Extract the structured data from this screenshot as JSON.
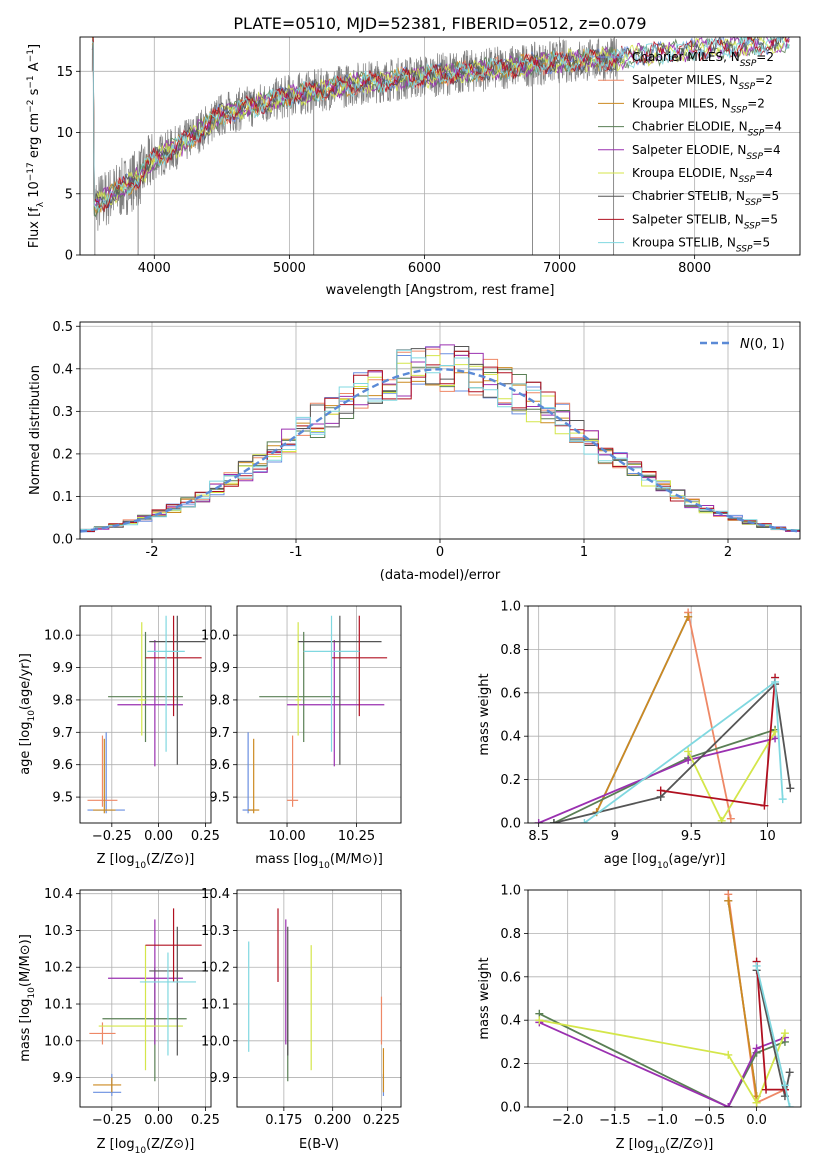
{
  "figure": {
    "title": "PLATE=0510, MJD=52381, FIBERID=0512, z=0.079"
  },
  "models": [
    {
      "name": "Chabrier MILES",
      "nssp": "2",
      "color": "#6a8fe0"
    },
    {
      "name": "Salpeter MILES",
      "nssp": "2",
      "color": "#ee8866"
    },
    {
      "name": "Kroupa MILES",
      "nssp": "2",
      "color": "#cc8a20"
    },
    {
      "name": "Chabrier ELODIE",
      "nssp": "4",
      "color": "#5a7f55"
    },
    {
      "name": "Salpeter ELODIE",
      "nssp": "4",
      "color": "#9a30b0"
    },
    {
      "name": "Kroupa ELODIE",
      "nssp": "4",
      "color": "#d4e64a"
    },
    {
      "name": "Chabrier STELIB",
      "nssp": "5",
      "color": "#555555"
    },
    {
      "name": "Salpeter STELIB",
      "nssp": "5",
      "color": "#b01020"
    },
    {
      "name": "Kroupa STELIB",
      "nssp": "5",
      "color": "#80d8e0"
    }
  ],
  "chart_data": [
    {
      "id": "spectrum",
      "type": "line",
      "title": "PLATE=0510, MJD=52381, FIBERID=0512, z=0.079",
      "xlabel": "wavelength [Angstrom, rest frame]",
      "ylabel": "Flux [f_λ 10^-17 erg cm^-2 s^-1 A^-1]",
      "xlim": [
        3450,
        8780
      ],
      "ylim": [
        0,
        17.8
      ],
      "xticks": [
        4000,
        5000,
        6000,
        7000,
        8000
      ],
      "yticks": [
        0,
        5,
        10,
        15
      ],
      "legend": "upper right",
      "continuum_x": [
        3550,
        3700,
        3900,
        4000,
        4200,
        4500,
        5000,
        5500,
        6000,
        6500,
        7000,
        7400,
        7500,
        8000,
        8500,
        8780
      ],
      "continuum_y": [
        4.0,
        5.0,
        6.5,
        7.9,
        9.0,
        11.5,
        13.0,
        14.0,
        14.6,
        15.2,
        15.8,
        16.0,
        16.2,
        16.8,
        17.2,
        17.5
      ],
      "data_range": [
        3540,
        7430
      ],
      "model_range": [
        3540,
        8700
      ],
      "dips": [
        {
          "x": 3560,
          "y": 0
        },
        {
          "x": 3880,
          "y": 0
        },
        {
          "x": 5180,
          "y": 0
        },
        {
          "x": 6800,
          "y": 0
        },
        {
          "x": 7400,
          "y": 0
        }
      ]
    },
    {
      "id": "residuals",
      "type": "line",
      "xlabel": "(data-model)/error",
      "ylabel": "Normed distribution",
      "xlim": [
        -2.5,
        2.5
      ],
      "ylim": [
        0,
        0.51
      ],
      "xticks": [
        -2,
        -1,
        0,
        1,
        2
      ],
      "yticks": [
        0.0,
        0.1,
        0.2,
        0.3,
        0.4,
        0.5
      ],
      "gaussian_label": "N(0,1)",
      "gaussian_color": "#5b8ad6",
      "bin_width": 0.1,
      "legend": "upper right"
    },
    {
      "id": "age_vs_Z",
      "type": "scatter",
      "xlabel": "Z [log10(Z/Z⊙)]",
      "ylabel": "age [log10(age/yr)]",
      "xlim": [
        -0.42,
        0.28
      ],
      "ylim": [
        9.42,
        10.09
      ],
      "xticks": [
        -0.25,
        0.0,
        0.25
      ],
      "xticklabels": [
        "−0.25",
        "0.00",
        "0.25"
      ],
      "yticks": [
        9.5,
        9.6,
        9.7,
        9.8,
        9.9,
        10.0
      ],
      "points": [
        {
          "model": 0,
          "x": -0.28,
          "y": 9.46,
          "xerr": [
            0.1,
            0.1
          ],
          "yerr": [
            0.01,
            0.24
          ]
        },
        {
          "model": 1,
          "x": -0.3,
          "y": 9.49,
          "xerr": [
            0.08,
            0.08
          ],
          "yerr": [
            0.02,
            0.2
          ]
        },
        {
          "model": 2,
          "x": -0.29,
          "y": 9.46,
          "xerr": [
            0.06,
            0.06
          ],
          "yerr": [
            0.01,
            0.22
          ]
        },
        {
          "model": 3,
          "x": -0.07,
          "y": 9.81,
          "xerr": [
            0.2,
            0.2
          ],
          "yerr": [
            0.14,
            0.2
          ]
        },
        {
          "model": 4,
          "x": -0.02,
          "y": 9.785,
          "xerr": [
            0.2,
            0.15
          ],
          "yerr": [
            0.19,
            0.2
          ]
        },
        {
          "model": 5,
          "x": -0.09,
          "y": 9.8,
          "xerr": [
            0.02,
            0.02
          ],
          "yerr": [
            0.11,
            0.24
          ]
        },
        {
          "model": 6,
          "x": 0.1,
          "y": 9.98,
          "xerr": [
            0.15,
            0.15
          ],
          "yerr": [
            0.38,
            0.08
          ]
        },
        {
          "model": 7,
          "x": 0.08,
          "y": 9.93,
          "xerr": [
            0.15,
            0.15
          ],
          "yerr": [
            0.18,
            0.13
          ]
        },
        {
          "model": 8,
          "x": 0.04,
          "y": 9.95,
          "xerr": [
            0.1,
            0.1
          ],
          "yerr": [
            0.31,
            0.11
          ]
        }
      ]
    },
    {
      "id": "age_vs_mass",
      "type": "scatter",
      "xlabel": "mass [log10(M/M⊙)]",
      "ylabel": "",
      "xlim": [
        9.82,
        10.41
      ],
      "ylim": [
        9.42,
        10.09
      ],
      "xticks": [
        10.0,
        10.25
      ],
      "xticklabels": [
        "10.00",
        "10.25"
      ],
      "yticks": [
        9.5,
        9.6,
        9.7,
        9.8,
        9.9,
        10.0
      ],
      "points": [
        {
          "model": 0,
          "x": 9.86,
          "y": 9.46,
          "xerr": [
            0.02,
            0.02
          ],
          "yerr": [
            0.01,
            0.24
          ]
        },
        {
          "model": 1,
          "x": 10.02,
          "y": 9.49,
          "xerr": [
            0.02,
            0.02
          ],
          "yerr": [
            0.02,
            0.2
          ]
        },
        {
          "model": 2,
          "x": 9.88,
          "y": 9.46,
          "xerr": [
            0.02,
            0.02
          ],
          "yerr": [
            0.01,
            0.22
          ]
        },
        {
          "model": 3,
          "x": 10.06,
          "y": 9.81,
          "xerr": [
            0.16,
            0.13
          ],
          "yerr": [
            0.14,
            0.2
          ]
        },
        {
          "model": 4,
          "x": 10.17,
          "y": 9.785,
          "xerr": [
            0.17,
            0.18
          ],
          "yerr": [
            0.19,
            0.2
          ]
        },
        {
          "model": 5,
          "x": 10.04,
          "y": 9.8,
          "xerr": [
            0.01,
            0.01
          ],
          "yerr": [
            0.11,
            0.24
          ]
        },
        {
          "model": 6,
          "x": 10.19,
          "y": 9.98,
          "xerr": [
            0.15,
            0.15
          ],
          "yerr": [
            0.38,
            0.08
          ]
        },
        {
          "model": 7,
          "x": 10.26,
          "y": 9.93,
          "xerr": [
            0.1,
            0.1
          ],
          "yerr": [
            0.18,
            0.13
          ]
        },
        {
          "model": 8,
          "x": 10.16,
          "y": 9.95,
          "xerr": [
            0.1,
            0.1
          ],
          "yerr": [
            0.31,
            0.11
          ]
        }
      ]
    },
    {
      "id": "weight_vs_age",
      "type": "line",
      "xlabel": "age [log10(age/yr)]",
      "ylabel": "mass weight",
      "xlim": [
        8.43,
        10.22
      ],
      "ylim": [
        0,
        1.0
      ],
      "xticks": [
        8.5,
        9.0,
        9.5,
        10.0
      ],
      "yticks": [
        0.0,
        0.2,
        0.4,
        0.6,
        0.8,
        1.0
      ],
      "series": [
        {
          "model": 0,
          "x": [
            8.88,
            9.48
          ],
          "y": [
            0.05,
            0.95
          ]
        },
        {
          "model": 1,
          "x": [
            9.48,
            9.76
          ],
          "y": [
            0.97,
            0.02
          ]
        },
        {
          "model": 2,
          "x": [
            8.88,
            9.48
          ],
          "y": [
            0.05,
            0.95
          ]
        },
        {
          "model": 3,
          "x": [
            8.6,
            9.48,
            10.05
          ],
          "y": [
            0.0,
            0.3,
            0.43
          ]
        },
        {
          "model": 4,
          "x": [
            8.5,
            9.48,
            10.05
          ],
          "y": [
            0.0,
            0.29,
            0.39
          ]
        },
        {
          "model": 5,
          "x": [
            9.48,
            9.7,
            10.05
          ],
          "y": [
            0.33,
            0.01,
            0.42
          ]
        },
        {
          "model": 6,
          "x": [
            8.6,
            9.3,
            10.05,
            10.15
          ],
          "y": [
            0.0,
            0.12,
            0.64,
            0.16
          ]
        },
        {
          "model": 7,
          "x": [
            9.3,
            9.98,
            10.05
          ],
          "y": [
            0.15,
            0.08,
            0.67
          ]
        },
        {
          "model": 8,
          "x": [
            8.8,
            10.05,
            10.1
          ],
          "y": [
            0.0,
            0.65,
            0.11
          ]
        }
      ]
    },
    {
      "id": "mass_vs_Z",
      "type": "scatter",
      "xlabel": "Z [log10(Z/Z⊙)]",
      "ylabel": "mass [log10(M/M⊙)]",
      "xlim": [
        -0.42,
        0.28
      ],
      "ylim": [
        9.82,
        10.41
      ],
      "xticks": [
        -0.25,
        0.0,
        0.25
      ],
      "xticklabels": [
        "−0.25",
        "0.00",
        "0.25"
      ],
      "yticks": [
        9.9,
        10.0,
        10.1,
        10.2,
        10.3,
        10.4
      ],
      "points": [
        {
          "model": 0,
          "x": -0.25,
          "y": 9.86,
          "xerr": [
            0.1,
            0.05
          ],
          "yerr": [
            0.01,
            0.05
          ]
        },
        {
          "model": 1,
          "x": -0.3,
          "y": 10.02,
          "xerr": [
            0.07,
            0.07
          ],
          "yerr": [
            0.03,
            0.03
          ]
        },
        {
          "model": 2,
          "x": -0.25,
          "y": 9.88,
          "xerr": [
            0.1,
            0.05
          ],
          "yerr": [
            0.02,
            0.02
          ]
        },
        {
          "model": 3,
          "x": -0.02,
          "y": 10.06,
          "xerr": [
            0.28,
            0.17
          ],
          "yerr": [
            0.17,
            0.14
          ]
        },
        {
          "model": 4,
          "x": -0.02,
          "y": 10.17,
          "xerr": [
            0.25,
            0.15
          ],
          "yerr": [
            0.18,
            0.16
          ]
        },
        {
          "model": 5,
          "x": -0.07,
          "y": 10.04,
          "xerr": [
            0.25,
            0.2
          ],
          "yerr": [
            0.12,
            0.22
          ]
        },
        {
          "model": 6,
          "x": 0.1,
          "y": 10.19,
          "xerr": [
            0.15,
            0.15
          ],
          "yerr": [
            0.23,
            0.12
          ]
        },
        {
          "model": 7,
          "x": 0.08,
          "y": 10.26,
          "xerr": [
            0.15,
            0.15
          ],
          "yerr": [
            0.1,
            0.1
          ]
        },
        {
          "model": 8,
          "x": 0.05,
          "y": 10.16,
          "xerr": [
            0.15,
            0.15
          ],
          "yerr": [
            0.2,
            0.08
          ]
        }
      ]
    },
    {
      "id": "mass_vs_EBV",
      "type": "scatter",
      "xlabel": "E(B-V)",
      "ylabel": "",
      "xlim": [
        0.151,
        0.235
      ],
      "ylim": [
        9.82,
        10.41
      ],
      "xticks": [
        0.175,
        0.2,
        0.225
      ],
      "xticklabels": [
        "0.175",
        "0.200",
        "0.225"
      ],
      "yticks": [
        9.9,
        10.0,
        10.1,
        10.2,
        10.3,
        10.4
      ],
      "points": [
        {
          "model": 0,
          "x": 0.226,
          "y": 9.86,
          "xerr": [
            0,
            0
          ],
          "yerr": [
            0.01,
            0.05
          ]
        },
        {
          "model": 1,
          "x": 0.225,
          "y": 10.02,
          "xerr": [
            0,
            0
          ],
          "yerr": [
            0.03,
            0.1
          ]
        },
        {
          "model": 2,
          "x": 0.226,
          "y": 9.88,
          "xerr": [
            0,
            0
          ],
          "yerr": [
            0.02,
            0.1
          ]
        },
        {
          "model": 3,
          "x": 0.177,
          "y": 10.06,
          "xerr": [
            0,
            0
          ],
          "yerr": [
            0.17,
            0.14
          ]
        },
        {
          "model": 4,
          "x": 0.176,
          "y": 10.17,
          "xerr": [
            0,
            0
          ],
          "yerr": [
            0.18,
            0.16
          ]
        },
        {
          "model": 5,
          "x": 0.189,
          "y": 10.04,
          "xerr": [
            0,
            0
          ],
          "yerr": [
            0.12,
            0.22
          ]
        },
        {
          "model": 6,
          "x": 0.177,
          "y": 10.19,
          "xerr": [
            0,
            0
          ],
          "yerr": [
            0.23,
            0.12
          ]
        },
        {
          "model": 7,
          "x": 0.172,
          "y": 10.26,
          "xerr": [
            0,
            0
          ],
          "yerr": [
            0.1,
            0.1
          ]
        },
        {
          "model": 8,
          "x": 0.157,
          "y": 10.16,
          "xerr": [
            0,
            0
          ],
          "yerr": [
            0.19,
            0.11
          ]
        }
      ]
    },
    {
      "id": "weight_vs_Z",
      "type": "line",
      "xlabel": "Z [log10(Z/Z⊙)]",
      "ylabel": "mass weight",
      "xlim": [
        -2.42,
        0.47
      ],
      "ylim": [
        0,
        1.0
      ],
      "xticks": [
        -2.0,
        -1.5,
        -1.0,
        -0.5,
        0.0
      ],
      "xticklabels": [
        "−2.0",
        "−1.5",
        "−1.0",
        "−0.5",
        "0.0"
      ],
      "yticks": [
        0.0,
        0.2,
        0.4,
        0.6,
        0.8,
        1.0
      ],
      "series": [
        {
          "model": 0,
          "x": [
            -0.3,
            0.0
          ],
          "y": [
            0.95,
            0.05
          ]
        },
        {
          "model": 1,
          "x": [
            -0.3,
            0.0,
            0.3
          ],
          "y": [
            0.98,
            0.02,
            0.08
          ]
        },
        {
          "model": 2,
          "x": [
            -0.3,
            0.0
          ],
          "y": [
            0.95,
            0.05
          ]
        },
        {
          "model": 3,
          "x": [
            -2.3,
            -0.3,
            0.0,
            0.3
          ],
          "y": [
            0.43,
            0.0,
            0.25,
            0.3
          ]
        },
        {
          "model": 4,
          "x": [
            -2.3,
            -0.3,
            0.0,
            0.3
          ],
          "y": [
            0.39,
            0.0,
            0.27,
            0.32
          ]
        },
        {
          "model": 5,
          "x": [
            -2.3,
            -0.3,
            0.0,
            0.3
          ],
          "y": [
            0.4,
            0.24,
            0.02,
            0.34
          ]
        },
        {
          "model": 6,
          "x": [
            0.0,
            0.3,
            0.35
          ],
          "y": [
            0.63,
            0.05,
            0.16
          ]
        },
        {
          "model": 7,
          "x": [
            0.0,
            0.1,
            0.3
          ],
          "y": [
            0.67,
            0.08,
            0.08
          ]
        },
        {
          "model": 8,
          "x": [
            0.0,
            0.3,
            0.35
          ],
          "y": [
            0.65,
            0.1,
            0.0
          ]
        }
      ]
    }
  ]
}
